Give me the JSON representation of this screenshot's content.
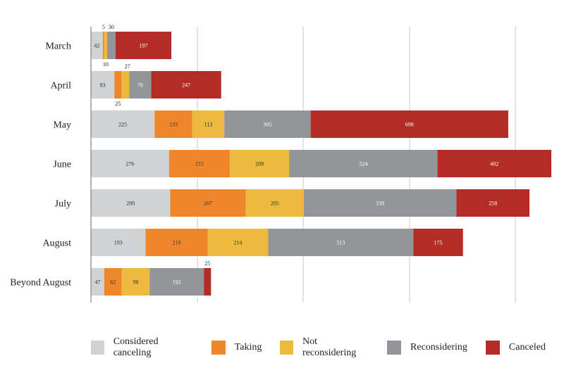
{
  "chart_data": {
    "type": "bar",
    "orientation": "horizontal",
    "stacked": true,
    "title": "",
    "xlabel": "",
    "ylabel": "",
    "grid": true,
    "legend_position": "bottom",
    "categories": [
      "March",
      "April",
      "May",
      "June",
      "July",
      "August",
      "Beyond August"
    ],
    "series": [
      {
        "name": "Considered canceling",
        "color": "#d1d2d4",
        "label_color": "#333333",
        "values": [
          42,
          83,
          225,
          276,
          280,
          193,
          47
        ]
      },
      {
        "name": "Taking",
        "color": "#f0862a",
        "label_color": "#333333",
        "values": [
          5,
          25,
          133,
          215,
          267,
          219,
          62
        ]
      },
      {
        "name": "Not reconsidering",
        "color": "#edb93f",
        "label_color": "#333333",
        "values": [
          10,
          27,
          113,
          209,
          205,
          214,
          98
        ]
      },
      {
        "name": "Reconsidering",
        "color": "#939598",
        "label_color": "#ffffff",
        "values": [
          30,
          78,
          305,
          524,
          539,
          513,
          192
        ]
      },
      {
        "name": "Canceled",
        "color": "#b32d26",
        "label_color": "#ffffff",
        "values": [
          197,
          247,
          698,
          402,
          258,
          175,
          25
        ]
      }
    ],
    "xlim": [
      0,
      1626
    ]
  },
  "legend": {
    "items": [
      {
        "label": "Considered canceling",
        "color": "#d1d2d4"
      },
      {
        "label": "Taking",
        "color": "#f0862a"
      },
      {
        "label": "Not reconsidering",
        "color": "#edb93f"
      },
      {
        "label": "Reconsidering",
        "color": "#939598"
      },
      {
        "label": "Canceled",
        "color": "#b32d26"
      }
    ]
  }
}
